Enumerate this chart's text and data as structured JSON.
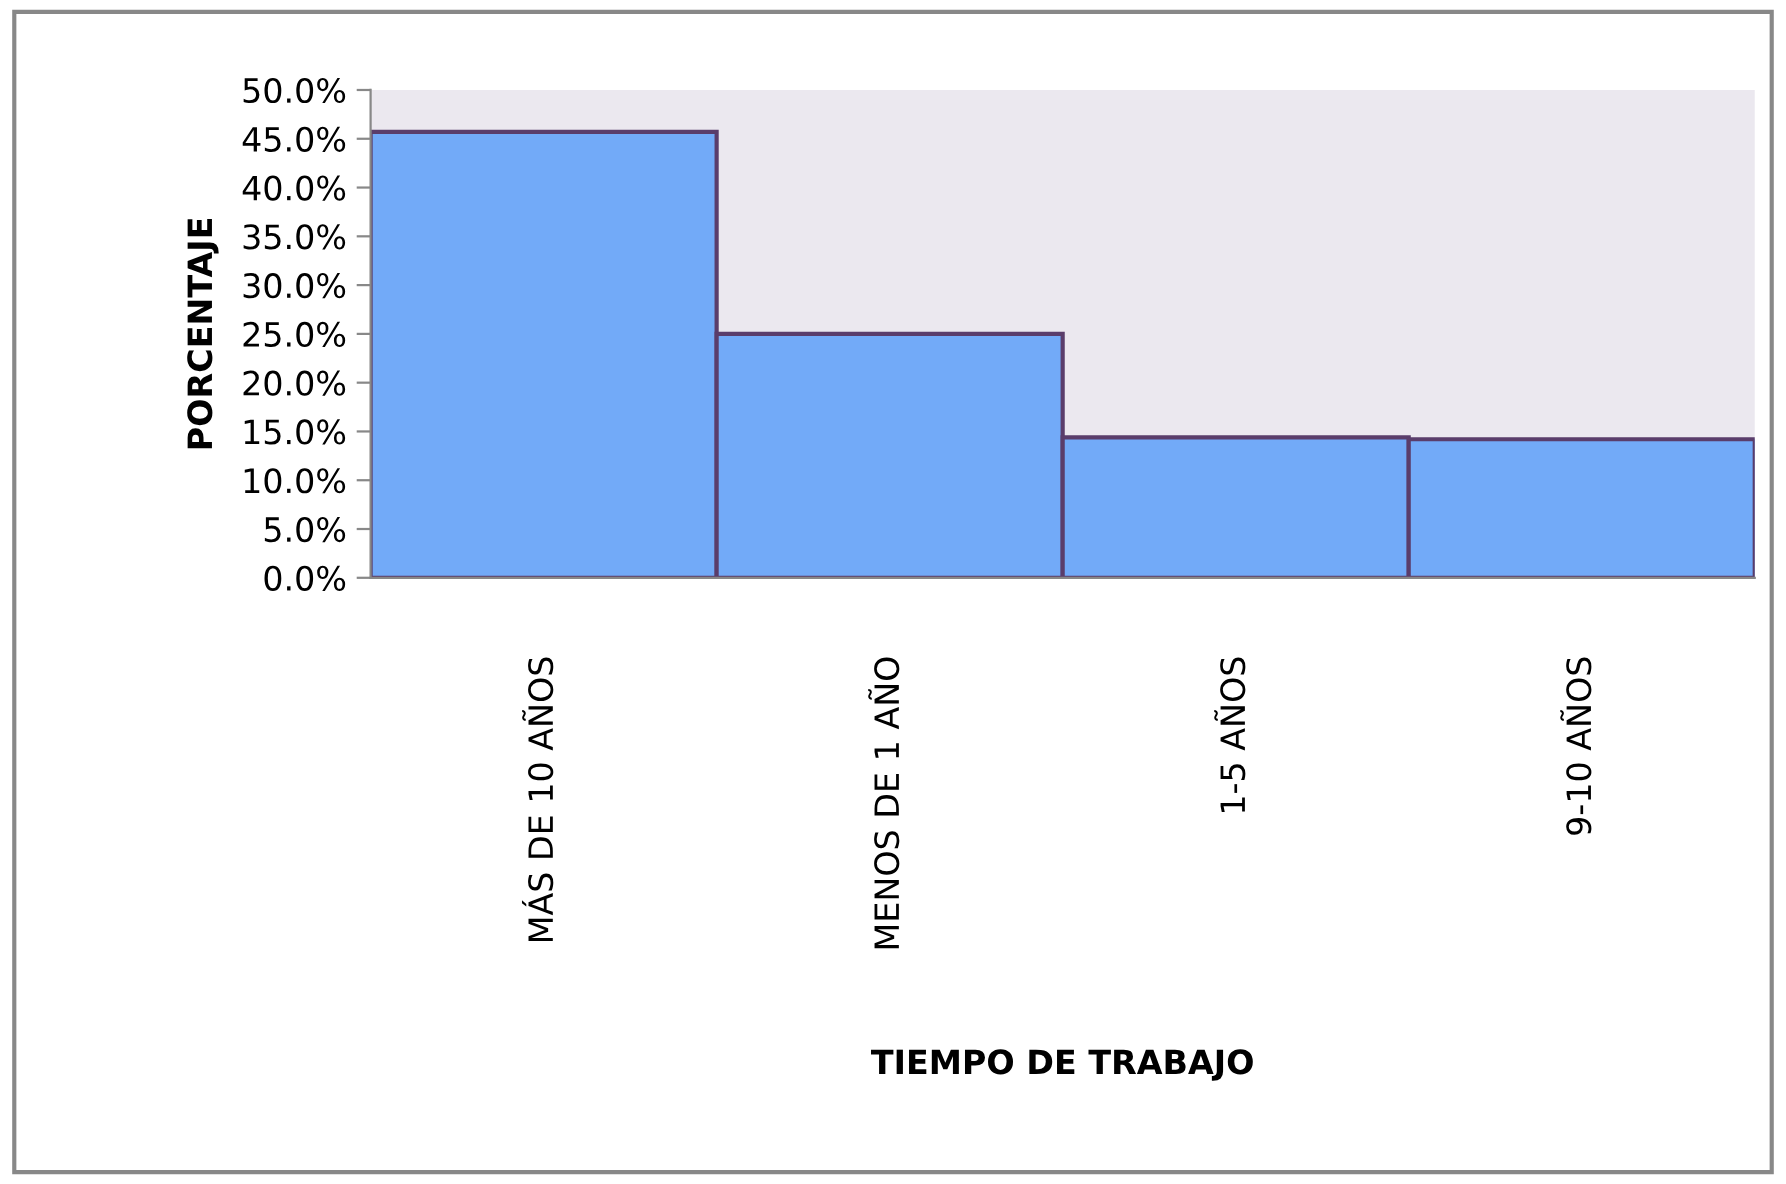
{
  "chart_data": {
    "type": "bar",
    "xlabel": "TIEMPO DE TRABAJO",
    "ylabel": "PORCENTAJE",
    "categories": [
      "MÁS DE 10 AÑOS",
      "MENOS DE 1 AÑO",
      "1-5 AÑOS",
      "9-10 AÑOS"
    ],
    "values": [
      45.7,
      25.0,
      14.4,
      14.2
    ],
    "color": "#72aaf8",
    "ylim": [
      0,
      50
    ],
    "yticks": [
      {
        "value": 0,
        "label": "0.0%"
      },
      {
        "value": 5,
        "label": "5.0%"
      },
      {
        "value": 10,
        "label": "10.0%"
      },
      {
        "value": 15,
        "label": "15.0%"
      },
      {
        "value": 20,
        "label": "20.0%"
      },
      {
        "value": 25,
        "label": "25.0%"
      },
      {
        "value": 30,
        "label": "30.0%"
      },
      {
        "value": 35,
        "label": "35.0%"
      },
      {
        "value": 40,
        "label": "40.0%"
      },
      {
        "value": 45,
        "label": "45.0%"
      },
      {
        "value": 50,
        "label": "50.0%"
      }
    ],
    "grid": false,
    "legend": false
  }
}
